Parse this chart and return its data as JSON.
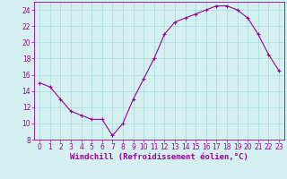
{
  "x": [
    0,
    1,
    2,
    3,
    4,
    5,
    6,
    7,
    8,
    9,
    10,
    11,
    12,
    13,
    14,
    15,
    16,
    17,
    18,
    19,
    20,
    21,
    22,
    23
  ],
  "y": [
    15.0,
    14.5,
    13.0,
    11.5,
    11.0,
    10.5,
    10.5,
    8.5,
    10.0,
    13.0,
    15.5,
    18.0,
    21.0,
    22.5,
    23.0,
    23.5,
    24.0,
    24.5,
    24.5,
    24.0,
    23.0,
    21.0,
    18.5,
    16.5
  ],
  "line_color": "#990099",
  "marker": "+",
  "marker_size": 3.5,
  "marker_linewidth": 0.8,
  "linewidth": 0.8,
  "background_color": "#d4f0f0",
  "grid_color": "#aadddd",
  "xlabel": "Windchill (Refroidissement éolien,°C)",
  "ylabel": "",
  "title": "",
  "xlim": [
    -0.5,
    23.5
  ],
  "ylim": [
    8,
    25
  ],
  "yticks": [
    8,
    10,
    12,
    14,
    16,
    18,
    20,
    22,
    24
  ],
  "xtick_labels": [
    "0",
    "1",
    "2",
    "3",
    "4",
    "5",
    "6",
    "7",
    "8",
    "9",
    "10",
    "11",
    "12",
    "13",
    "14",
    "15",
    "16",
    "17",
    "18",
    "19",
    "20",
    "21",
    "22",
    "23"
  ],
  "xlabel_color": "#990099",
  "tick_color": "#990099",
  "axis_color": "#990099",
  "label_fontsize": 6.5,
  "tick_fontsize": 5.5
}
